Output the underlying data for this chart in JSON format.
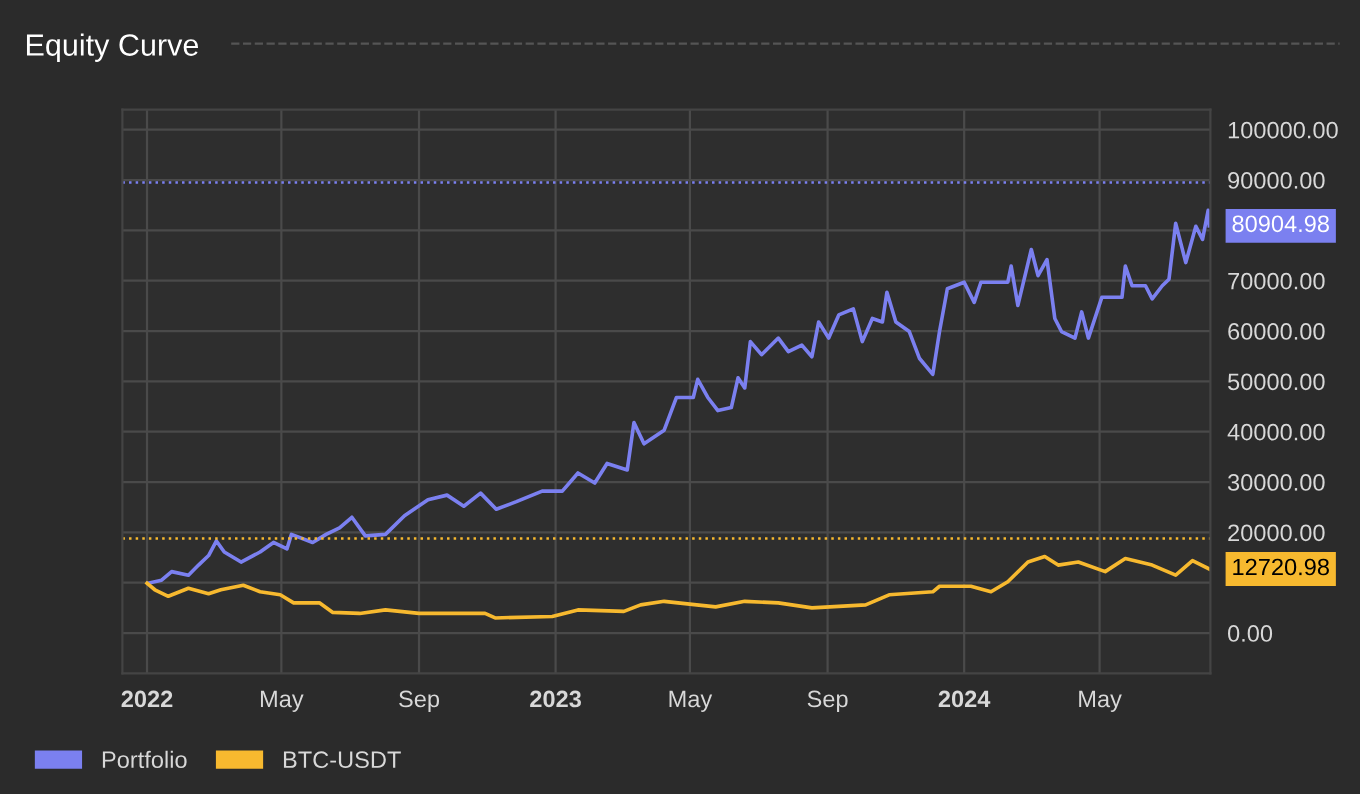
{
  "chart_data": {
    "type": "line",
    "title": "Equity Curve",
    "xlim": [
      "2021-12-10",
      "2024-08-08"
    ],
    "ylim": [
      -8000,
      104000
    ],
    "xticks": [
      {
        "value": "2022-01-01",
        "label": "2022"
      },
      {
        "value": "2022-05-01",
        "label": "May"
      },
      {
        "value": "2022-09-01",
        "label": "Sep"
      },
      {
        "value": "2023-01-01",
        "label": "2023"
      },
      {
        "value": "2023-05-01",
        "label": "May"
      },
      {
        "value": "2023-09-01",
        "label": "Sep"
      },
      {
        "value": "2024-01-01",
        "label": "2024"
      },
      {
        "value": "2024-05-01",
        "label": "May"
      }
    ],
    "yticks": [
      {
        "value": 0,
        "label": "0.00"
      },
      {
        "value": 10000,
        "label": null
      },
      {
        "value": 20000,
        "label": "20000.00"
      },
      {
        "value": 30000,
        "label": "30000.00"
      },
      {
        "value": 40000,
        "label": "40000.00"
      },
      {
        "value": 50000,
        "label": "50000.00"
      },
      {
        "value": 60000,
        "label": "60000.00"
      },
      {
        "value": 70000,
        "label": "70000.00"
      },
      {
        "value": 80000,
        "label": null
      },
      {
        "value": 90000,
        "label": "90000.00"
      },
      {
        "value": 100000,
        "label": "100000.00"
      }
    ],
    "grid": true,
    "legend": "bottom left",
    "series": [
      {
        "name": "Portfolio",
        "color": "#7b80f0",
        "x": [
          "2022-01-02",
          "2022-01-14",
          "2022-01-23",
          "2022-02-07",
          "2022-02-16",
          "2022-02-25",
          "2022-03-04",
          "2022-03-11",
          "2022-03-26",
          "2022-04-12",
          "2022-04-24",
          "2022-05-06",
          "2022-05-10",
          "2022-05-29",
          "2022-06-10",
          "2022-06-22",
          "2022-07-03",
          "2022-07-15",
          "2022-08-02",
          "2022-08-19",
          "2022-09-09",
          "2022-09-26",
          "2022-10-11",
          "2022-10-26",
          "2022-11-09",
          "2022-11-27",
          "2022-12-20",
          "2023-01-07",
          "2023-01-21",
          "2023-02-05",
          "2023-02-16",
          "2023-03-06",
          "2023-03-12",
          "2023-03-21",
          "2023-04-08",
          "2023-04-19",
          "2023-05-04",
          "2023-05-08",
          "2023-05-17",
          "2023-05-26",
          "2023-06-07",
          "2023-06-13",
          "2023-06-19",
          "2023-06-24",
          "2023-07-04",
          "2023-07-19",
          "2023-07-28",
          "2023-08-09",
          "2023-08-18",
          "2023-08-24",
          "2023-09-02",
          "2023-09-11",
          "2023-09-24",
          "2023-10-02",
          "2023-10-11",
          "2023-10-20",
          "2023-10-24",
          "2023-11-01",
          "2023-11-13",
          "2023-11-22",
          "2023-12-04",
          "2023-12-10",
          "2023-12-17",
          "2024-01-01",
          "2024-01-10",
          "2024-01-16",
          "2024-02-09",
          "2024-02-12",
          "2024-02-18",
          "2024-03-01",
          "2024-03-07",
          "2024-03-15",
          "2024-03-22",
          "2024-03-28",
          "2024-04-09",
          "2024-04-15",
          "2024-04-21",
          "2024-05-03",
          "2024-05-21",
          "2024-05-24",
          "2024-05-30",
          "2024-06-11",
          "2024-06-17",
          "2024-06-26",
          "2024-07-02",
          "2024-07-08",
          "2024-07-17",
          "2024-07-26",
          "2024-08-01",
          "2024-08-06",
          "2024-08-07"
        ],
        "values": [
          9900,
          10500,
          12200,
          11500,
          13500,
          15400,
          18300,
          16100,
          14100,
          16100,
          18000,
          16700,
          19600,
          18000,
          19600,
          20900,
          23000,
          19300,
          19600,
          23300,
          26500,
          27400,
          25200,
          27800,
          24600,
          26100,
          28200,
          28200,
          31800,
          29800,
          33700,
          32400,
          41800,
          37600,
          40300,
          46800,
          46800,
          50400,
          46800,
          44200,
          44800,
          50700,
          48700,
          57900,
          55300,
          58600,
          55900,
          57200,
          54900,
          61800,
          58600,
          63200,
          64400,
          57900,
          62500,
          61800,
          67700,
          61800,
          59900,
          54600,
          51400,
          59900,
          68400,
          69700,
          65700,
          69700,
          69700,
          72900,
          65100,
          76200,
          71000,
          74200,
          62500,
          59900,
          58600,
          63800,
          58600,
          66700,
          66700,
          72900,
          69000,
          69000,
          66400,
          69000,
          70300,
          81400,
          73600,
          80800,
          78200,
          84000,
          80904.98
        ]
      },
      {
        "name": "BTC-USDT",
        "color": "#f7b92f",
        "x": [
          "2022-01-01",
          "2022-01-08",
          "2022-01-20",
          "2022-02-07",
          "2022-02-25",
          "2022-03-08",
          "2022-03-28",
          "2022-04-12",
          "2022-04-30",
          "2022-05-12",
          "2022-06-04",
          "2022-06-16",
          "2022-07-10",
          "2022-08-02",
          "2022-09-01",
          "2022-09-30",
          "2022-10-30",
          "2022-11-08",
          "2022-12-29",
          "2023-01-21",
          "2023-03-03",
          "2023-03-18",
          "2023-04-08",
          "2023-05-07",
          "2023-05-24",
          "2023-06-19",
          "2023-07-19",
          "2023-08-18",
          "2023-10-05",
          "2023-10-26",
          "2023-12-04",
          "2023-12-10",
          "2024-01-07",
          "2024-01-25",
          "2024-02-09",
          "2024-02-27",
          "2024-03-13",
          "2024-03-25",
          "2024-04-12",
          "2024-05-06",
          "2024-05-24",
          "2024-06-17",
          "2024-07-08",
          "2024-07-23",
          "2024-08-07"
        ],
        "values": [
          9900,
          8600,
          7300,
          8900,
          7800,
          8600,
          9500,
          8200,
          7600,
          6000,
          6000,
          4100,
          3900,
          4600,
          3900,
          3900,
          3900,
          3000,
          3300,
          4600,
          4300,
          5600,
          6300,
          5600,
          5200,
          6300,
          6000,
          5000,
          5600,
          7600,
          8200,
          9300,
          9300,
          8200,
          10200,
          14100,
          15200,
          13500,
          14100,
          12200,
          14800,
          13500,
          11500,
          14400,
          12720.98
        ]
      }
    ],
    "ref_lines": [
      {
        "axis": "y",
        "value": 89500,
        "color": "#7b80f0",
        "line_style": "dotted"
      },
      {
        "axis": "y",
        "value": 18800,
        "color": "#f7b92f",
        "line_style": "dotted"
      }
    ],
    "annotations": [
      {
        "text": "80904.98",
        "x": "2024-08-07",
        "y": 80904.98
      },
      {
        "text": "12720.98",
        "x": "2024-08-07",
        "y": 12720.98
      }
    ]
  }
}
